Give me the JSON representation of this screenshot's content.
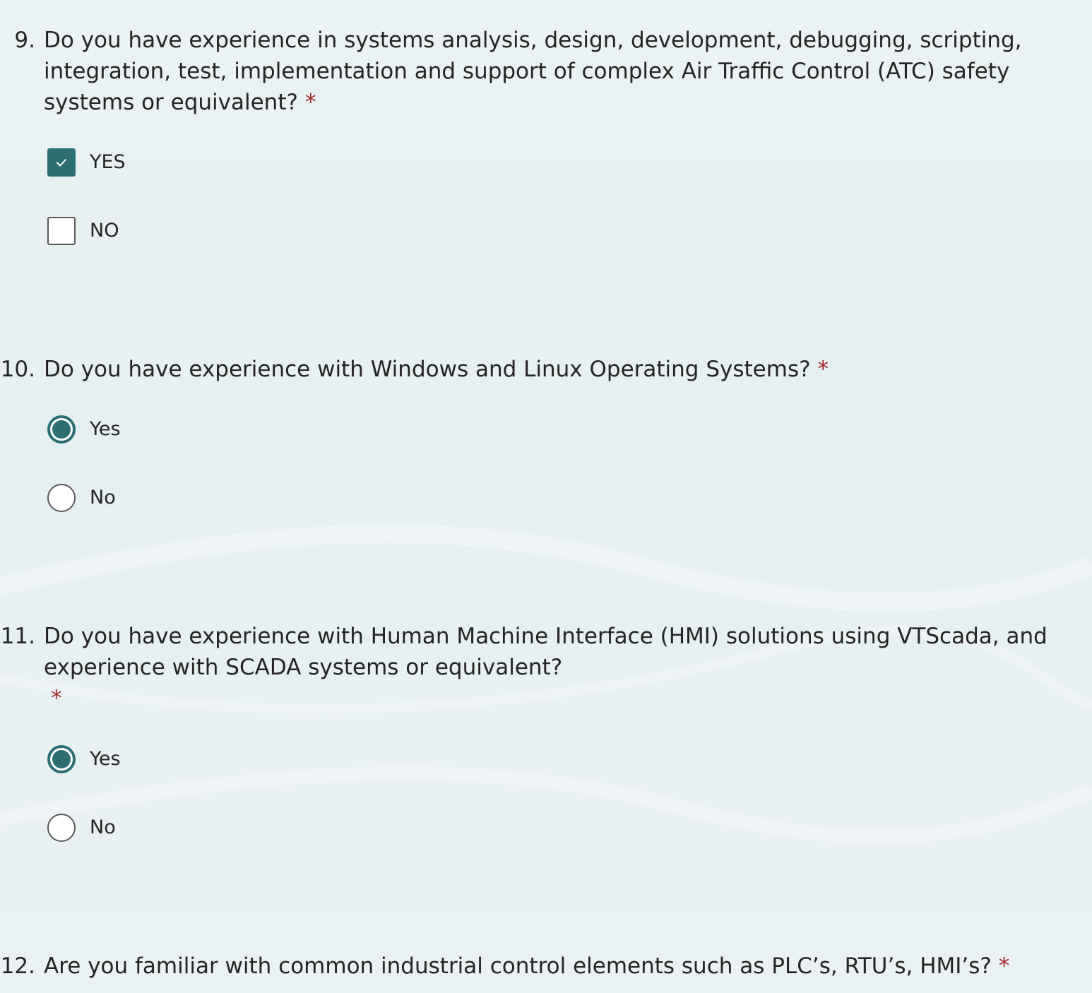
{
  "questions": [
    {
      "number": "9.",
      "text": "Do you have experience in systems analysis, design, development, debugging, scripting, integration, test, implementation and support of complex Air Traffic Control (ATC) safety systems or equivalent?",
      "required_mark": "*",
      "type": "checkbox",
      "options": [
        {
          "label": "YES",
          "checked": true
        },
        {
          "label": "NO",
          "checked": false
        }
      ]
    },
    {
      "number": "10.",
      "text": "Do you have experience with Windows and Linux Operating Systems?",
      "required_mark": "*",
      "type": "radio",
      "options": [
        {
          "label": "Yes",
          "selected": true
        },
        {
          "label": "No",
          "selected": false
        }
      ]
    },
    {
      "number": "11.",
      "text": "Do you have experience with Human Machine Interface (HMI) solutions using VTScada, and experience with SCADA systems or equivalent?",
      "required_mark": "*",
      "type": "radio",
      "options": [
        {
          "label": "Yes",
          "selected": true
        },
        {
          "label": "No",
          "selected": false
        }
      ]
    },
    {
      "number": "12.",
      "text": "Are you familiar with common industrial control elements such as PLC’s, RTU’s, HMI’s?",
      "required_mark": "*"
    }
  ],
  "colors": {
    "accent": "#2d6e75",
    "required": "#a4262c",
    "text": "#242424"
  },
  "icons": {
    "checkmark": "check-icon"
  }
}
